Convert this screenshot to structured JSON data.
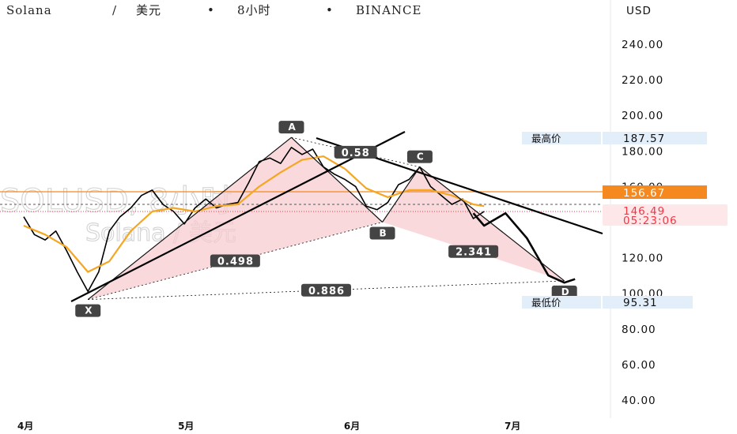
{
  "header": {
    "symbol": "Solana",
    "separator": "/",
    "currency_cn": "美元",
    "dot": "•",
    "interval": "8小时",
    "exchange": "BINANCE"
  },
  "watermark": {
    "line1": "SOLUSD, 8小时",
    "line2": "Solana / 美元"
  },
  "axis": {
    "currency": "USD"
  },
  "price_tags": {
    "high": {
      "label": "最高价",
      "value": "187.57"
    },
    "low": {
      "label": "最低价",
      "value": "95.31"
    },
    "line": {
      "value": "156.67",
      "color": "#f5891f"
    },
    "last": {
      "value": "146.49",
      "countdown": "05:23:06",
      "color": "#f23645"
    }
  },
  "pattern": {
    "points": [
      {
        "label": "X",
        "date": "2024-04-13",
        "price": 96.5
      },
      {
        "label": "A",
        "date": "2024-05-21",
        "price": 187.6
      },
      {
        "label": "B",
        "date": "2024-06-07",
        "price": 140.0
      },
      {
        "label": "C",
        "date": "2024-06-14",
        "price": 171.0
      },
      {
        "label": "D",
        "date": "2024-07-11",
        "price": 107.0
      }
    ],
    "ratios": [
      "0.498",
      "0.58",
      "2.341",
      "0.886"
    ],
    "fill_color": "#f8c9cf",
    "line_color": "#111111"
  },
  "chart_data": {
    "type": "line",
    "title": "Solana / 美元 • 8小时 • BINANCE",
    "ylabel": "USD",
    "ylim": [
      37,
      248
    ],
    "yticks": [
      "240.00",
      "220.00",
      "200.00",
      "180.00",
      "160.00",
      "120.00",
      "100.00",
      "80.00",
      "60.00",
      "40.00"
    ],
    "xticks": [
      "4月",
      "5月",
      "6月",
      "7月"
    ],
    "grid": false,
    "series": [
      {
        "x": [
          "2024-04-01",
          "2024-04-03",
          "2024-04-05",
          "2024-04-07",
          "2024-04-09",
          "2024-04-11",
          "2024-04-13",
          "2024-04-15",
          "2024-04-17",
          "2024-04-19",
          "2024-04-21",
          "2024-04-23",
          "2024-04-25",
          "2024-04-27",
          "2024-04-29",
          "2024-05-01",
          "2024-05-03",
          "2024-05-05",
          "2024-05-07",
          "2024-05-09",
          "2024-05-11",
          "2024-05-13",
          "2024-05-15",
          "2024-05-17",
          "2024-05-19",
          "2024-05-21",
          "2024-05-23",
          "2024-05-25",
          "2024-05-27",
          "2024-05-29",
          "2024-05-31",
          "2024-06-02",
          "2024-06-04",
          "2024-06-06",
          "2024-06-08",
          "2024-06-10",
          "2024-06-12",
          "2024-06-14",
          "2024-06-16",
          "2024-06-18",
          "2024-06-20",
          "2024-06-22",
          "2024-06-24",
          "2024-06-26"
        ],
        "values": [
          143,
          133,
          130,
          135,
          124,
          112,
          101,
          112,
          135,
          143,
          148,
          155,
          158,
          150,
          146,
          139,
          148,
          153,
          148,
          150,
          151,
          162,
          174,
          176,
          173,
          182,
          178,
          181,
          171,
          167,
          164,
          160,
          149,
          147,
          151,
          161,
          164,
          171,
          160,
          155,
          150,
          153,
          142,
          146
        ]
      },
      {
        "x": [
          "2024-04-01",
          "2024-04-05",
          "2024-04-09",
          "2024-04-13",
          "2024-04-17",
          "2024-04-21",
          "2024-04-25",
          "2024-04-29",
          "2024-05-03",
          "2024-05-07",
          "2024-05-11",
          "2024-05-15",
          "2024-05-19",
          "2024-05-23",
          "2024-05-27",
          "2024-05-31",
          "2024-06-04",
          "2024-06-08",
          "2024-06-12",
          "2024-06-16",
          "2024-06-20",
          "2024-06-24",
          "2024-06-26"
        ],
        "values": [
          138,
          133,
          126,
          112,
          118,
          135,
          146,
          148,
          146,
          149,
          150,
          160,
          168,
          175,
          177,
          170,
          159,
          154,
          158,
          158,
          155,
          150,
          149
        ]
      },
      {
        "x": [
          "2024-06-24",
          "2024-06-26",
          "2024-06-30",
          "2024-07-04",
          "2024-07-08",
          "2024-07-11",
          "2024-07-13"
        ],
        "values": [
          145,
          138,
          145,
          131,
          110,
          106,
          108
        ]
      }
    ],
    "colors": {
      "price": "#000000",
      "ma": "#f5a623",
      "projection": "#000000"
    }
  }
}
